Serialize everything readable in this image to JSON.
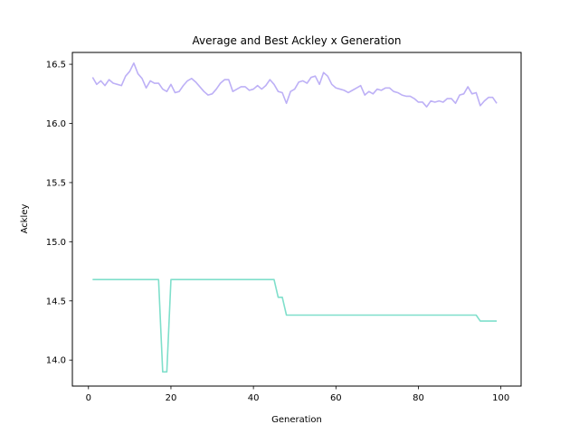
{
  "chart_data": {
    "type": "line",
    "title": "Average and Best Ackley x Generation",
    "xlabel": "Generation",
    "ylabel": "Ackley",
    "xlim": [
      -3.9,
      104.9
    ],
    "ylim": [
      13.78,
      16.6
    ],
    "xticks": [
      0,
      20,
      40,
      60,
      80,
      100
    ],
    "yticks": [
      14.0,
      14.5,
      15.0,
      15.5,
      16.0,
      16.5
    ],
    "grid": false,
    "series": [
      {
        "color": "#bdb0f6",
        "x": [
          1,
          2,
          3,
          4,
          5,
          6,
          7,
          8,
          9,
          10,
          11,
          12,
          13,
          14,
          15,
          16,
          17,
          18,
          19,
          20,
          21,
          22,
          23,
          24,
          25,
          26,
          27,
          28,
          29,
          30,
          31,
          32,
          33,
          34,
          35,
          36,
          37,
          38,
          39,
          40,
          41,
          42,
          43,
          44,
          45,
          46,
          47,
          48,
          49,
          50,
          51,
          52,
          53,
          54,
          55,
          56,
          57,
          58,
          59,
          60,
          61,
          62,
          63,
          64,
          65,
          66,
          67,
          68,
          69,
          70,
          71,
          72,
          73,
          74,
          75,
          76,
          77,
          78,
          79,
          80,
          81,
          82,
          83,
          84,
          85,
          86,
          87,
          88,
          89,
          90,
          91,
          92,
          93,
          94,
          95,
          96,
          97,
          98,
          99
        ],
        "values": [
          16.39,
          16.33,
          16.36,
          16.32,
          16.37,
          16.34,
          16.33,
          16.32,
          16.4,
          16.44,
          16.51,
          16.42,
          16.38,
          16.3,
          16.36,
          16.34,
          16.34,
          16.29,
          16.27,
          16.33,
          16.26,
          16.27,
          16.32,
          16.36,
          16.38,
          16.35,
          16.31,
          16.27,
          16.24,
          16.25,
          16.29,
          16.34,
          16.37,
          16.37,
          16.27,
          16.29,
          16.31,
          16.31,
          16.28,
          16.29,
          16.32,
          16.29,
          16.32,
          16.37,
          16.33,
          16.27,
          16.26,
          16.17,
          16.27,
          16.29,
          16.35,
          16.36,
          16.34,
          16.39,
          16.4,
          16.33,
          16.43,
          16.4,
          16.33,
          16.3,
          16.29,
          16.28,
          16.26,
          16.28,
          16.3,
          16.32,
          16.24,
          16.27,
          16.25,
          16.29,
          16.28,
          16.3,
          16.3,
          16.27,
          16.26,
          16.24,
          16.23,
          16.23,
          16.21,
          16.18,
          16.18,
          16.14,
          16.19,
          16.18,
          16.19,
          16.18,
          16.21,
          16.21,
          16.17,
          16.24,
          16.25,
          16.31,
          16.25,
          16.26,
          16.15,
          16.19,
          16.22,
          16.22,
          16.17
        ]
      },
      {
        "color": "#7fdfcb",
        "x": [
          1,
          2,
          3,
          4,
          5,
          6,
          7,
          8,
          9,
          10,
          11,
          12,
          13,
          14,
          15,
          16,
          17,
          18,
          19,
          20,
          21,
          22,
          23,
          24,
          25,
          26,
          27,
          28,
          29,
          30,
          31,
          32,
          33,
          34,
          35,
          36,
          37,
          38,
          39,
          40,
          41,
          42,
          43,
          44,
          45,
          46,
          47,
          48,
          49,
          50,
          51,
          52,
          53,
          54,
          55,
          56,
          57,
          58,
          59,
          60,
          61,
          62,
          63,
          64,
          65,
          66,
          67,
          68,
          69,
          70,
          71,
          72,
          73,
          74,
          75,
          76,
          77,
          78,
          79,
          80,
          81,
          82,
          83,
          84,
          85,
          86,
          87,
          88,
          89,
          90,
          91,
          92,
          93,
          94,
          95,
          96,
          97,
          98,
          99
        ],
        "values": [
          14.68,
          14.68,
          14.68,
          14.68,
          14.68,
          14.68,
          14.68,
          14.68,
          14.68,
          14.68,
          14.68,
          14.68,
          14.68,
          14.68,
          14.68,
          14.68,
          14.68,
          13.9,
          13.9,
          14.68,
          14.68,
          14.68,
          14.68,
          14.68,
          14.68,
          14.68,
          14.68,
          14.68,
          14.68,
          14.68,
          14.68,
          14.68,
          14.68,
          14.68,
          14.68,
          14.68,
          14.68,
          14.68,
          14.68,
          14.68,
          14.68,
          14.68,
          14.68,
          14.68,
          14.68,
          14.53,
          14.53,
          14.38,
          14.38,
          14.38,
          14.38,
          14.38,
          14.38,
          14.38,
          14.38,
          14.38,
          14.38,
          14.38,
          14.38,
          14.38,
          14.38,
          14.38,
          14.38,
          14.38,
          14.38,
          14.38,
          14.38,
          14.38,
          14.38,
          14.38,
          14.38,
          14.38,
          14.38,
          14.38,
          14.38,
          14.38,
          14.38,
          14.38,
          14.38,
          14.38,
          14.38,
          14.38,
          14.38,
          14.38,
          14.38,
          14.38,
          14.38,
          14.38,
          14.38,
          14.38,
          14.38,
          14.38,
          14.38,
          14.38,
          14.33,
          14.33,
          14.33,
          14.33,
          14.33
        ]
      }
    ]
  }
}
